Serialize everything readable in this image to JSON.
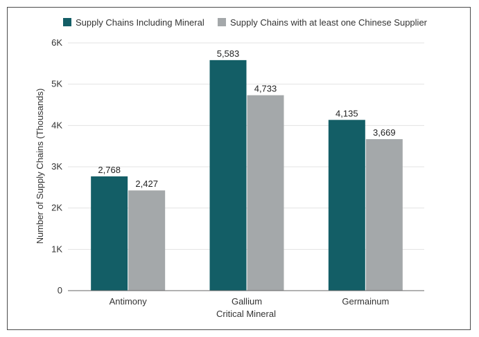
{
  "chart_data": {
    "type": "bar",
    "title": "",
    "xlabel": "Critical Mineral",
    "ylabel": "Number of Supply Chains (Thousands)",
    "categories": [
      "Antimony",
      "Gallium",
      "Germainum"
    ],
    "series": [
      {
        "name": "Supply Chains Including Mineral",
        "values": [
          2768,
          5583,
          4135
        ],
        "labels": [
          "2,768",
          "5,583",
          "4,135"
        ],
        "color": "#135e66"
      },
      {
        "name": "Supply Chains with at least one Chinese Supplier",
        "values": [
          2427,
          4733,
          3669
        ],
        "labels": [
          "2,427",
          "4,733",
          "3,669"
        ],
        "color": "#a4a8aa"
      }
    ],
    "ylim": [
      0,
      6000
    ],
    "yticks": [
      0,
      1000,
      2000,
      3000,
      4000,
      5000,
      6000
    ],
    "ytick_labels": [
      "0",
      "1K",
      "2K",
      "3K",
      "4K",
      "5K",
      "6K"
    ],
    "grid": true,
    "legend_position": "top"
  }
}
